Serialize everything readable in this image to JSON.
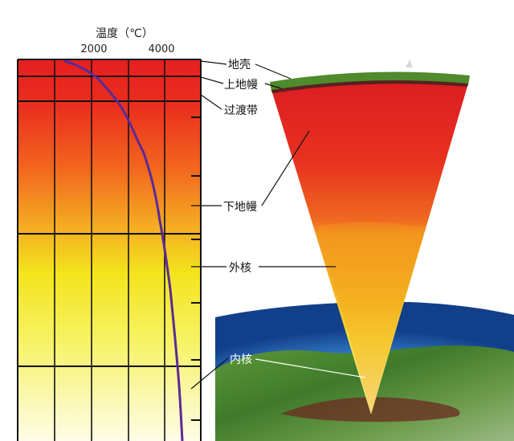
{
  "diagram": {
    "axis_title": "温度（℃）",
    "ticks": [
      {
        "label": "2000",
        "value": 2000
      },
      {
        "label": "4000",
        "value": 4000
      }
    ],
    "layers": [
      {
        "id": "crust",
        "label": "地壳"
      },
      {
        "id": "upper-mantle",
        "label": "上地幔"
      },
      {
        "id": "transition-zone",
        "label": "过渡带"
      },
      {
        "id": "lower-mantle",
        "label": "下地幔"
      },
      {
        "id": "outer-core",
        "label": "外核"
      },
      {
        "id": "inner-core",
        "label": "内核"
      }
    ],
    "temperature_curve_color": "#5a2a96",
    "colors": {
      "crust_green": "#4f8a2c",
      "mantle_red": "#e8261f",
      "outer_core_orange": "#f39a1e",
      "inner_core_yellow": "#f6ee3a",
      "sky_blue": "#2b6fc4"
    }
  }
}
